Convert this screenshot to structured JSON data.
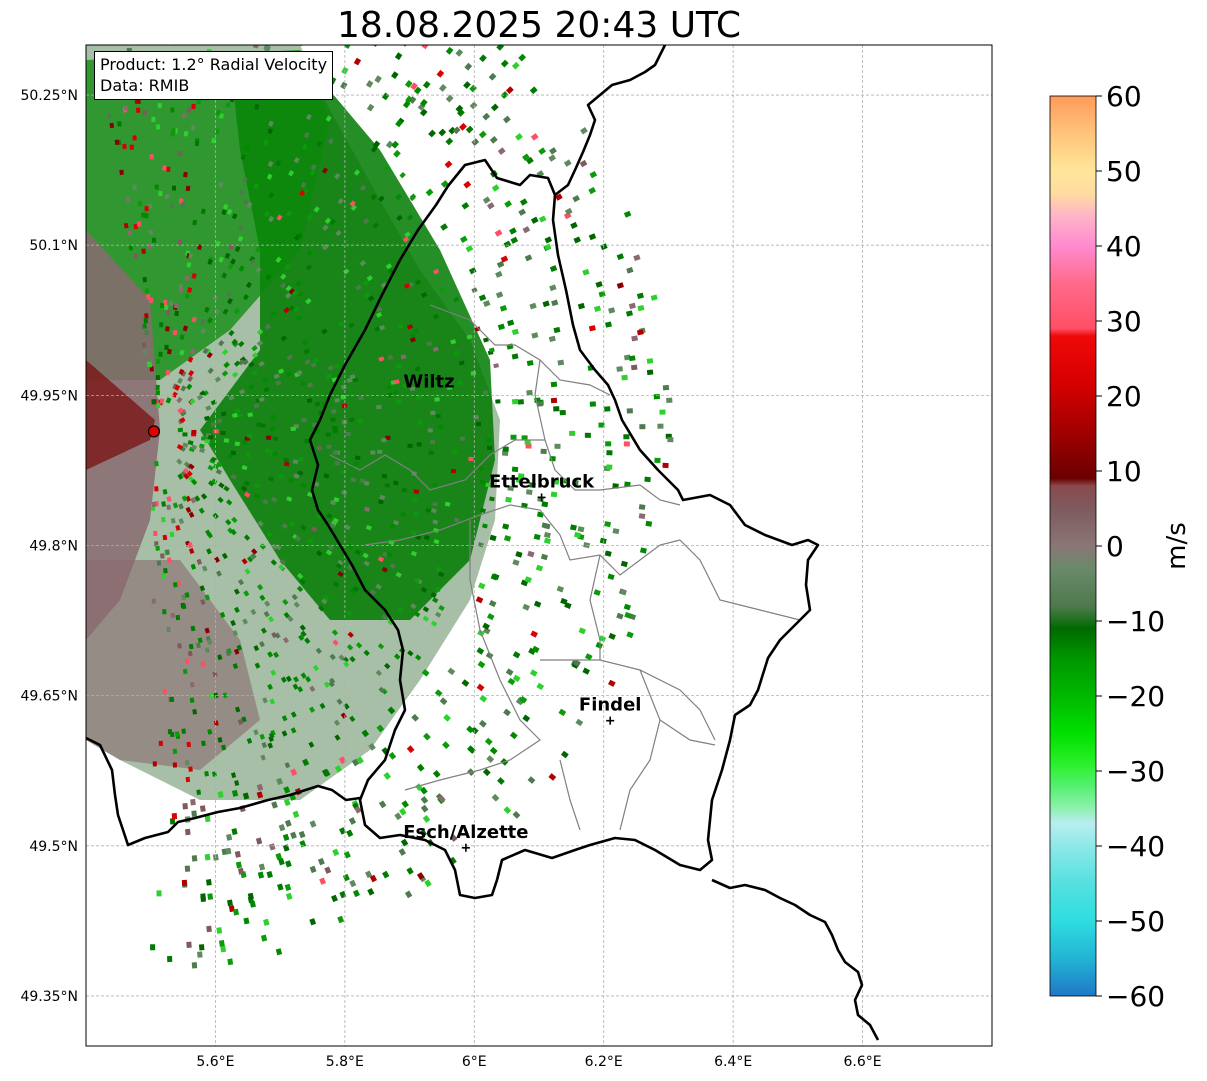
{
  "title": "18.08.2025 20:43 UTC",
  "info": {
    "product": "Product: 1.2° Radial Velocity",
    "source": "Data: RMIB"
  },
  "map": {
    "lon_range": [
      5.4,
      6.8
    ],
    "lat_range": [
      49.3,
      50.3
    ],
    "lon_ticks": [
      {
        "value": 5.6,
        "label": "5.6°E"
      },
      {
        "value": 5.8,
        "label": "5.8°E"
      },
      {
        "value": 6.0,
        "label": "6°E"
      },
      {
        "value": 6.2,
        "label": "6.2°E"
      },
      {
        "value": 6.4,
        "label": "6.4°E"
      },
      {
        "value": 6.6,
        "label": "6.6°E"
      }
    ],
    "lat_ticks": [
      {
        "value": 50.25,
        "label": "50.25°N"
      },
      {
        "value": 50.1,
        "label": "50.1°N"
      },
      {
        "value": 49.95,
        "label": "49.95°N"
      },
      {
        "value": 49.8,
        "label": "49.8°N"
      },
      {
        "value": 49.65,
        "label": "49.65°N"
      },
      {
        "value": 49.5,
        "label": "49.5°N"
      },
      {
        "value": 49.35,
        "label": "49.35°N"
      }
    ],
    "radar": {
      "lon": 5.505,
      "lat": 49.914
    },
    "cities": [
      {
        "name": "Wiltz",
        "lon": 5.93,
        "lat": 49.966,
        "marker": false
      },
      {
        "name": "Ettelbruck",
        "lon": 6.104,
        "lat": 49.848,
        "marker": true
      },
      {
        "name": "Findel",
        "lon": 6.21,
        "lat": 49.625,
        "marker": true
      },
      {
        "name": "Esch/Alzette",
        "lon": 5.987,
        "lat": 49.498,
        "marker": true
      }
    ]
  },
  "colorbar": {
    "label": "m/s",
    "min": -60,
    "max": 60,
    "ticks": [
      {
        "value": 60,
        "label": "60"
      },
      {
        "value": 50,
        "label": "50"
      },
      {
        "value": 40,
        "label": "40"
      },
      {
        "value": 30,
        "label": "30"
      },
      {
        "value": 20,
        "label": "20"
      },
      {
        "value": 10,
        "label": "10"
      },
      {
        "value": 0,
        "label": "0"
      },
      {
        "value": -10,
        "label": "−10"
      },
      {
        "value": -20,
        "label": "−20"
      },
      {
        "value": -30,
        "label": "−30"
      },
      {
        "value": -40,
        "label": "−40"
      },
      {
        "value": -50,
        "label": "−50"
      },
      {
        "value": -60,
        "label": "−60"
      }
    ],
    "stops": [
      {
        "value": -60,
        "color": "#1f78c8"
      },
      {
        "value": -55,
        "color": "#22b4d4"
      },
      {
        "value": -50,
        "color": "#2edde0"
      },
      {
        "value": -45,
        "color": "#55e0e0"
      },
      {
        "value": -40,
        "color": "#8ee8e8"
      },
      {
        "value": -37,
        "color": "#b8eef0"
      },
      {
        "value": -35,
        "color": "#8ff0b0"
      },
      {
        "value": -32,
        "color": "#55f070"
      },
      {
        "value": -29,
        "color": "#2af02a"
      },
      {
        "value": -25,
        "color": "#00e000"
      },
      {
        "value": -20,
        "color": "#00b800"
      },
      {
        "value": -15,
        "color": "#009600"
      },
      {
        "value": -11,
        "color": "#006a00"
      },
      {
        "value": -8,
        "color": "#4e7a4e"
      },
      {
        "value": -3,
        "color": "#6a8a6a"
      },
      {
        "value": 0,
        "color": "#8a7676"
      },
      {
        "value": 5,
        "color": "#7e5a5e"
      },
      {
        "value": 8,
        "color": "#8a4a4e"
      },
      {
        "value": 9,
        "color": "#6a0000"
      },
      {
        "value": 15,
        "color": "#a00000"
      },
      {
        "value": 22,
        "color": "#d80000"
      },
      {
        "value": 28,
        "color": "#f00808"
      },
      {
        "value": 29,
        "color": "#ff4f66"
      },
      {
        "value": 35,
        "color": "#ff6a8a"
      },
      {
        "value": 40,
        "color": "#ff8ad0"
      },
      {
        "value": 44,
        "color": "#ffb4c8"
      },
      {
        "value": 47,
        "color": "#ffdca0"
      },
      {
        "value": 50,
        "color": "#ffe69a"
      },
      {
        "value": 55,
        "color": "#ffc47a"
      },
      {
        "value": 60,
        "color": "#ff9a5a"
      }
    ]
  }
}
